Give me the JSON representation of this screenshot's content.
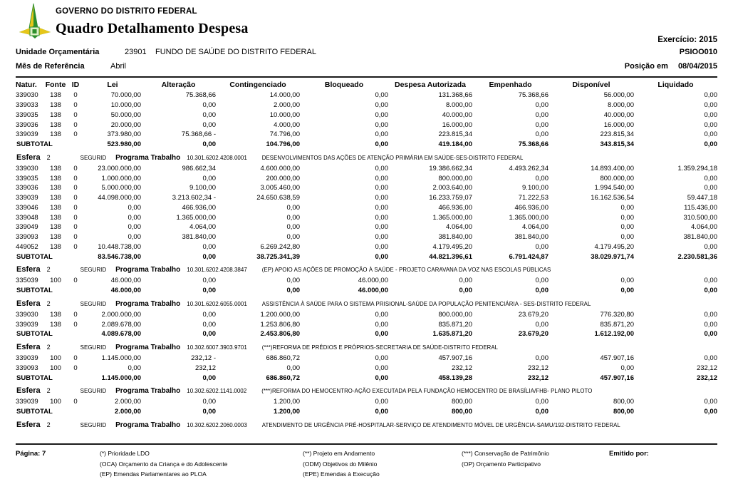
{
  "header": {
    "org": "GOVERNO DO DISTRITO FEDERAL",
    "title": "Quadro Detalhamento Despesa",
    "exercicio_label": "Exercício:",
    "exercicio_value": "2015",
    "report_code": "PSIOO010",
    "unidade_label": "Unidade Orçamentária",
    "unidade_code": "23901",
    "unidade_name": "FUNDO DE SAÚDE DO DISTRITO FEDERAL",
    "mes_label": "Mês de Referência",
    "mes_value": "Abril",
    "posicao_label": "Posição em",
    "posicao_value": "08/04/2015"
  },
  "logo_colors": {
    "green": "#2d8f2d",
    "yellow": "#e6c619",
    "light": "#dff0c8"
  },
  "table": {
    "columns": [
      "Natur.",
      "Fonte",
      "ID",
      "Lei",
      "Alteração",
      "Contingenciado",
      "Bloqueado",
      "Despesa Autorizada",
      "Empenhado",
      "Disponível",
      "Liquidado"
    ],
    "subtotal_label": "SUBTOTAL",
    "esfera_label": "Esfera",
    "programa_label": "Programa Trabalho",
    "sections": [
      {
        "esfera": null,
        "rows": [
          {
            "natur": "339030",
            "fonte": "138",
            "id": "0",
            "v": [
              "70.000,00",
              "75.368,66",
              "14.000,00",
              "0,00",
              "131.368,66",
              "75.368,66",
              "56.000,00",
              "0,00"
            ]
          },
          {
            "natur": "339033",
            "fonte": "138",
            "id": "0",
            "v": [
              "10.000,00",
              "0,00",
              "2.000,00",
              "0,00",
              "8.000,00",
              "0,00",
              "8.000,00",
              "0,00"
            ]
          },
          {
            "natur": "339035",
            "fonte": "138",
            "id": "0",
            "v": [
              "50.000,00",
              "0,00",
              "10.000,00",
              "0,00",
              "40.000,00",
              "0,00",
              "40.000,00",
              "0,00"
            ]
          },
          {
            "natur": "339036",
            "fonte": "138",
            "id": "0",
            "v": [
              "20.000,00",
              "0,00",
              "4.000,00",
              "0,00",
              "16.000,00",
              "0,00",
              "16.000,00",
              "0,00"
            ]
          },
          {
            "natur": "339039",
            "fonte": "138",
            "id": "0",
            "v": [
              "373.980,00",
              "75.368,66 -",
              "74.796,00",
              "0,00",
              "223.815,34",
              "0,00",
              "223.815,34",
              "0,00"
            ]
          }
        ],
        "subtotal": [
          "523.980,00",
          "0,00",
          "104.796,00",
          "0,00",
          "419.184,00",
          "75.368,66",
          "343.815,34",
          "0,00"
        ]
      },
      {
        "esfera": {
          "value": "2",
          "regime": "SEGURID",
          "code": "10.301.6202.4208.0001",
          "description": "DESENVOLVIMENTOS DAS AÇÕES DE ATENÇÃO PRIMÁRIA EM SAÚDE-SES-DISTRITO FEDERAL"
        },
        "rows": [
          {
            "natur": "339030",
            "fonte": "138",
            "id": "0",
            "v": [
              "23.000.000,00",
              "986.662,34",
              "4.600.000,00",
              "0,00",
              "19.386.662,34",
              "4.493.262,34",
              "14.893.400,00",
              "1.359.294,18"
            ]
          },
          {
            "natur": "339035",
            "fonte": "138",
            "id": "0",
            "v": [
              "1.000.000,00",
              "0,00",
              "200.000,00",
              "0,00",
              "800.000,00",
              "0,00",
              "800.000,00",
              "0,00"
            ]
          },
          {
            "natur": "339036",
            "fonte": "138",
            "id": "0",
            "v": [
              "5.000.000,00",
              "9.100,00",
              "3.005.460,00",
              "0,00",
              "2.003.640,00",
              "9.100,00",
              "1.994.540,00",
              "0,00"
            ]
          },
          {
            "natur": "339039",
            "fonte": "138",
            "id": "0",
            "v": [
              "44.098.000,00",
              "3.213.602,34 -",
              "24.650.638,59",
              "0,00",
              "16.233.759,07",
              "71.222,53",
              "16.162.536,54",
              "59.447,18"
            ]
          },
          {
            "natur": "339046",
            "fonte": "138",
            "id": "0",
            "v": [
              "0,00",
              "466.936,00",
              "0,00",
              "0,00",
              "466.936,00",
              "466.936,00",
              "0,00",
              "115.436,00"
            ]
          },
          {
            "natur": "339048",
            "fonte": "138",
            "id": "0",
            "v": [
              "0,00",
              "1.365.000,00",
              "0,00",
              "0,00",
              "1.365.000,00",
              "1.365.000,00",
              "0,00",
              "310.500,00"
            ]
          },
          {
            "natur": "339049",
            "fonte": "138",
            "id": "0",
            "v": [
              "0,00",
              "4.064,00",
              "0,00",
              "0,00",
              "4.064,00",
              "4.064,00",
              "0,00",
              "4.064,00"
            ]
          },
          {
            "natur": "339093",
            "fonte": "138",
            "id": "0",
            "v": [
              "0,00",
              "381.840,00",
              "0,00",
              "0,00",
              "381.840,00",
              "381.840,00",
              "0,00",
              "381.840,00"
            ]
          },
          {
            "natur": "449052",
            "fonte": "138",
            "id": "0",
            "v": [
              "10.448.738,00",
              "0,00",
              "6.269.242,80",
              "0,00",
              "4.179.495,20",
              "0,00",
              "4.179.495,20",
              "0,00"
            ]
          }
        ],
        "subtotal": [
          "83.546.738,00",
          "0,00",
          "38.725.341,39",
          "0,00",
          "44.821.396,61",
          "6.791.424,87",
          "38.029.971,74",
          "2.230.581,36"
        ]
      },
      {
        "esfera": {
          "value": "2",
          "regime": "SEGURID",
          "code": "10.301.6202.4208.3847",
          "description": "(EP) APOIO AS AÇÕES DE PROMOÇÃO À SAÚDE - PROJETO CARAVANA DA VOZ NAS ESCOLAS PÚBLICAS"
        },
        "rows": [
          {
            "natur": "335039",
            "fonte": "100",
            "id": "0",
            "v": [
              "46.000,00",
              "0,00",
              "0,00",
              "46.000,00",
              "0,00",
              "0,00",
              "0,00",
              "0,00"
            ]
          }
        ],
        "subtotal": [
          "46.000,00",
          "0,00",
          "0,00",
          "46.000,00",
          "0,00",
          "0,00",
          "0,00",
          "0,00"
        ]
      },
      {
        "esfera": {
          "value": "2",
          "regime": "SEGURID",
          "code": "10.301.6202.6055.0001",
          "description": "ASSISTÊNCIA À SAÚDE PARA O SISTEMA PRISIONAL-SAÚDE DA POPULAÇÃO PENITENCIÁRIA - SES-DISTRITO FEDERAL"
        },
        "rows": [
          {
            "natur": "339030",
            "fonte": "138",
            "id": "0",
            "v": [
              "2.000.000,00",
              "0,00",
              "1.200.000,00",
              "0,00",
              "800.000,00",
              "23.679,20",
              "776.320,80",
              "0,00"
            ]
          },
          {
            "natur": "339039",
            "fonte": "138",
            "id": "0",
            "v": [
              "2.089.678,00",
              "0,00",
              "1.253.806,80",
              "0,00",
              "835.871,20",
              "0,00",
              "835.871,20",
              "0,00"
            ]
          }
        ],
        "subtotal": [
          "4.089.678,00",
          "0,00",
          "2.453.806,80",
          "0,00",
          "1.635.871,20",
          "23.679,20",
          "1.612.192,00",
          "0,00"
        ]
      },
      {
        "esfera": {
          "value": "2",
          "regime": "SEGURID",
          "code": "10.302.6007.3903.9701",
          "description": "(***)REFORMA DE PRÉDIOS E PRÓPRIOS-SECRETARIA DE SAÚDE-DISTRITO FEDERAL"
        },
        "rows": [
          {
            "natur": "339039",
            "fonte": "100",
            "id": "0",
            "v": [
              "1.145.000,00",
              "232,12 -",
              "686.860,72",
              "0,00",
              "457.907,16",
              "0,00",
              "457.907,16",
              "0,00"
            ]
          },
          {
            "natur": "339093",
            "fonte": "100",
            "id": "0",
            "v": [
              "0,00",
              "232,12",
              "0,00",
              "0,00",
              "232,12",
              "232,12",
              "0,00",
              "232,12"
            ]
          }
        ],
        "subtotal": [
          "1.145.000,00",
          "0,00",
          "686.860,72",
          "0,00",
          "458.139,28",
          "232,12",
          "457.907,16",
          "232,12"
        ]
      },
      {
        "esfera": {
          "value": "2",
          "regime": "SEGURID",
          "code": "10.302.6202.1141.0002",
          "description": "(***)REFORMA DO HEMOCENTRO-AÇÃO EXECUTADA PELA FUNDAÇÃO HEMOCENTRO DE BRASÍLIA/FHB- PLANO PILOTO"
        },
        "rows": [
          {
            "natur": "339039",
            "fonte": "100",
            "id": "0",
            "v": [
              "2.000,00",
              "0,00",
              "1.200,00",
              "0,00",
              "800,00",
              "0,00",
              "800,00",
              "0,00"
            ]
          }
        ],
        "subtotal": [
          "2.000,00",
          "0,00",
          "1.200,00",
          "0,00",
          "800,00",
          "0,00",
          "800,00",
          "0,00"
        ]
      },
      {
        "esfera": {
          "value": "2",
          "regime": "SEGURID",
          "code": "10.302.6202.2060.0003",
          "description": "ATENDIMENTO DE URGÊNCIA PRÉ-HOSPITALAR-SERVIÇO DE ATENDIMENTO MÓVEL DE URGÊNCIA-SAMU/192-DISTRITO FEDERAL"
        },
        "rows": [],
        "subtotal": null
      }
    ]
  },
  "footer": {
    "page_label": "Página:",
    "page_value": "7",
    "legend_col1": [
      "(*)  Prioridade LDO",
      "(OCA)  Orçamento da Criança e do Adolescente",
      "(EP)  Emendas Parlamentares ao PLOA"
    ],
    "legend_col2": [
      "(**)  Projeto em Andamento",
      "(ODM) Objetivos do Milênio",
      "(EPE) Emendas à Execução"
    ],
    "legend_col3": [
      "(***)  Conservação de Patrimônio",
      "(OP) Orçamento Participativo"
    ],
    "emitido_label": "Emitido por:"
  }
}
